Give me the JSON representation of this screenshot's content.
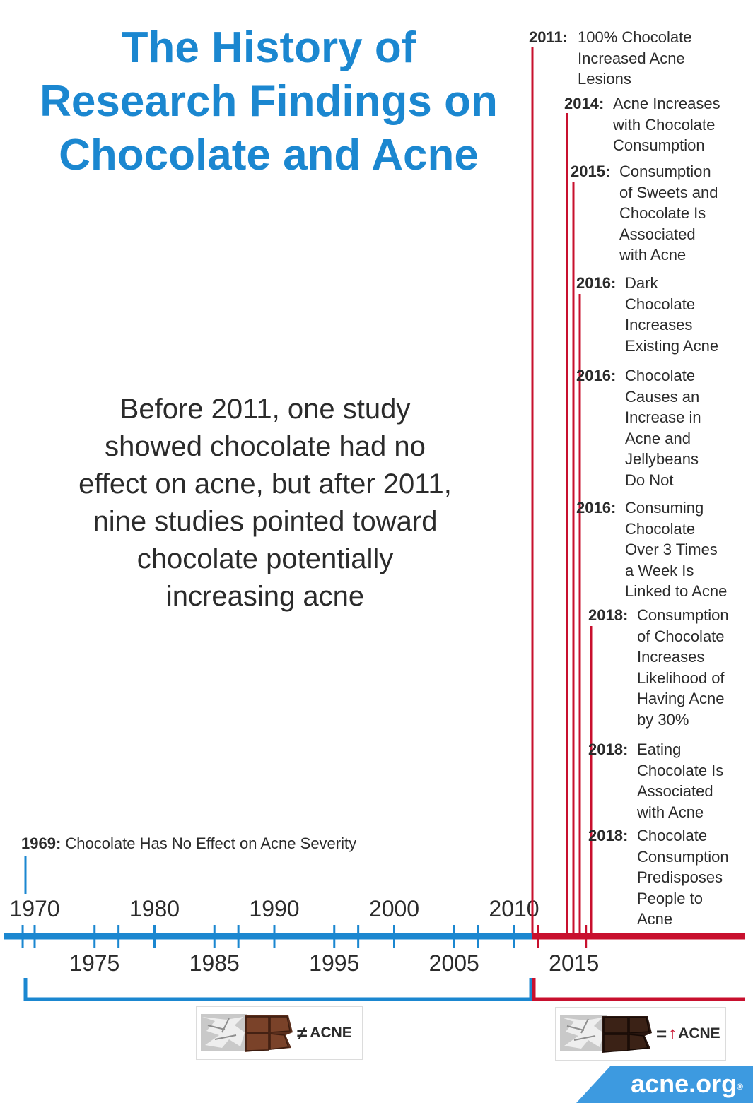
{
  "title_lines": [
    "The History of",
    "Research Findings on",
    "Chocolate and Acne"
  ],
  "summary_lines": [
    "Before 2011, one study",
    "showed chocolate had no",
    "effect on acne, but after 2011,",
    "nine studies pointed toward",
    "chocolate potentially",
    "increasing acne"
  ],
  "chart_data": {
    "type": "timeline",
    "axis_range": [
      1967,
      2030
    ],
    "major_ticks": [
      1970,
      1980,
      1990,
      2000,
      2010
    ],
    "minor_tick_labels": [
      1975,
      1985,
      1995,
      2005,
      2015
    ],
    "era_colors": {
      "before": "#1b87d0",
      "after": "#c8102e"
    },
    "events": [
      {
        "year": 1969,
        "label": "1969:",
        "title": "Chocolate Has No Effect on Acne Severity",
        "color": "#1b87d0"
      },
      {
        "year": 2011,
        "label": "2011:",
        "title_lines": [
          "100% Chocolate",
          "Increased Acne",
          "Lesions"
        ],
        "color": "#c8102e"
      },
      {
        "year": 2014,
        "label": "2014:",
        "title_lines": [
          "Acne Increases",
          "with Chocolate",
          "Consumption"
        ],
        "color": "#c8102e"
      },
      {
        "year": 2015,
        "label": "2015:",
        "title_lines": [
          "Consumption",
          "of Sweets and",
          "Chocolate Is",
          "Associated",
          "with Acne"
        ],
        "color": "#c8102e"
      },
      {
        "year": 2016,
        "label": "2016:",
        "title_lines": [
          "Dark",
          "Chocolate",
          "Increases",
          "Existing Acne"
        ],
        "color": "#c8102e"
      },
      {
        "year": 2016,
        "label": "2016:",
        "title_lines": [
          "Chocolate",
          "Causes an",
          "Increase in",
          "Acne and",
          "Jellybeans",
          "Do Not"
        ],
        "color": "#c8102e"
      },
      {
        "year": 2016,
        "label": "2016:",
        "title_lines": [
          "Consuming",
          "Chocolate",
          "Over 3 Times",
          "a Week Is",
          "Linked to Acne"
        ],
        "color": "#c8102e"
      },
      {
        "year": 2018,
        "label": "2018:",
        "title_lines": [
          "Consumption",
          "of Chocolate",
          "Increases",
          "Likelihood of",
          "Having Acne",
          "by 30%"
        ],
        "color": "#c8102e"
      },
      {
        "year": 2018,
        "label": "2018:",
        "title_lines": [
          "Eating",
          "Chocolate Is",
          "Associated",
          "with Acne"
        ],
        "color": "#c8102e"
      },
      {
        "year": 2018,
        "label": "2018:",
        "title_lines": [
          "Chocolate",
          "Consumption",
          "Predisposes",
          "People to",
          "Acne"
        ],
        "color": "#c8102e"
      }
    ]
  },
  "badges": {
    "left": {
      "symbol": "≠",
      "word": "ACNE",
      "meaning": "chocolate does not equal acne"
    },
    "right": {
      "symbol": "=",
      "arrow": "↑",
      "word": "ACNE",
      "meaning": "chocolate equals increased acne"
    }
  },
  "logo": {
    "text": "acne.org",
    "mark": "®",
    "color": "#3d9ae0"
  }
}
